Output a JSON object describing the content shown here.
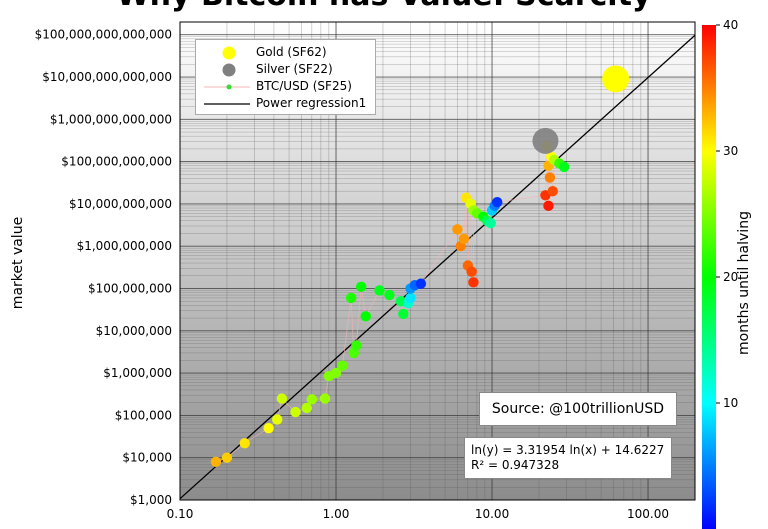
{
  "chart_data": {
    "type": "scatter",
    "title": "Why Bitcoin has Value: Scarcity",
    "ylabel": "market value",
    "colorbar_label": "months until halving",
    "x_scale": "log",
    "y_scale": "log",
    "xlim": [
      0.1,
      200
    ],
    "ylim": [
      1000,
      200000000000000
    ],
    "x_ticks": [
      0.1,
      1,
      10,
      100
    ],
    "x_tick_labels": [
      "0.10",
      "1.00",
      "10.00",
      "100.00"
    ],
    "y_ticks": [
      1000,
      10000,
      100000,
      1000000,
      10000000,
      100000000,
      1000000000,
      10000000000,
      100000000000,
      1000000000000,
      10000000000000,
      100000000000000
    ],
    "y_tick_labels": [
      "$1,000",
      "$10,000",
      "$100,000",
      "$1,000,000",
      "$10,000,000",
      "$100,000,000",
      "$1,000,000,000",
      "$10,000,000,000",
      "$100,000,000,000",
      "$1,000,000,000,000",
      "$10,000,000,000,000",
      "$100,000,000,000,000"
    ],
    "colorbar_range": [
      0,
      40
    ],
    "colorbar_ticks": [
      10,
      20,
      30,
      40
    ],
    "grid": true,
    "legend_position": "top-left",
    "legend": [
      {
        "label": "Gold (SF62)",
        "symbol": "large-yellow-dot"
      },
      {
        "label": "Silver (SF22)",
        "symbol": "large-gray-dot"
      },
      {
        "label": "BTC/USD (SF25)",
        "symbol": "small-green-dot-with-line"
      },
      {
        "label": "Power regression1",
        "symbol": "black-line"
      }
    ],
    "gold": {
      "sf": 62,
      "value": 9000000000000,
      "color": "#ffff00"
    },
    "silver": {
      "sf": 22,
      "value": 310000000000,
      "color": "#808080"
    },
    "regression": {
      "intercept": 14.6227,
      "slope": 3.31954
    },
    "btc_points": [
      {
        "sf": 0.17,
        "value": 8000,
        "months": 33
      },
      {
        "sf": 0.2,
        "value": 10000,
        "months": 32
      },
      {
        "sf": 0.26,
        "value": 22000,
        "months": 31
      },
      {
        "sf": 0.37,
        "value": 50000,
        "months": 30
      },
      {
        "sf": 0.42,
        "value": 80000,
        "months": 29
      },
      {
        "sf": 0.45,
        "value": 250000,
        "months": 28
      },
      {
        "sf": 0.55,
        "value": 120000,
        "months": 28
      },
      {
        "sf": 0.65,
        "value": 150000,
        "months": 27
      },
      {
        "sf": 0.7,
        "value": 240000,
        "months": 26
      },
      {
        "sf": 0.85,
        "value": 250000,
        "months": 26
      },
      {
        "sf": 0.9,
        "value": 850000,
        "months": 25
      },
      {
        "sf": 1.0,
        "value": 1000000,
        "months": 25
      },
      {
        "sf": 1.1,
        "value": 1500000,
        "months": 24
      },
      {
        "sf": 1.3,
        "value": 3000000,
        "months": 23
      },
      {
        "sf": 1.35,
        "value": 4500000,
        "months": 22
      },
      {
        "sf": 1.25,
        "value": 60000000,
        "months": 21
      },
      {
        "sf": 1.45,
        "value": 110000000,
        "months": 20
      },
      {
        "sf": 1.55,
        "value": 22000000,
        "months": 20
      },
      {
        "sf": 1.9,
        "value": 90000000,
        "months": 19
      },
      {
        "sf": 2.2,
        "value": 70000000,
        "months": 19
      },
      {
        "sf": 2.6,
        "value": 50000000,
        "months": 17
      },
      {
        "sf": 2.7,
        "value": 25000000,
        "months": 18
      },
      {
        "sf": 2.9,
        "value": 45000000,
        "months": 12
      },
      {
        "sf": 3.0,
        "value": 60000000,
        "months": 9
      },
      {
        "sf": 3.0,
        "value": 100000000,
        "months": 6
      },
      {
        "sf": 3.2,
        "value": 120000000,
        "months": 4
      },
      {
        "sf": 3.5,
        "value": 130000000,
        "months": 2
      },
      {
        "sf": 6.0,
        "value": 2500000000,
        "months": 34
      },
      {
        "sf": 6.3,
        "value": 1000000000,
        "months": 35
      },
      {
        "sf": 6.6,
        "value": 1500000000,
        "months": 34
      },
      {
        "sf": 7.0,
        "value": 350000000,
        "months": 36
      },
      {
        "sf": 7.4,
        "value": 250000000,
        "months": 37
      },
      {
        "sf": 7.6,
        "value": 140000000,
        "months": 38
      },
      {
        "sf": 6.8,
        "value": 14000000000,
        "months": 31
      },
      {
        "sf": 7.3,
        "value": 10000000000,
        "months": 29
      },
      {
        "sf": 7.6,
        "value": 7000000000,
        "months": 26
      },
      {
        "sf": 8.0,
        "value": 6000000000,
        "months": 24
      },
      {
        "sf": 8.8,
        "value": 5000000000,
        "months": 20
      },
      {
        "sf": 9.3,
        "value": 4000000000,
        "months": 17
      },
      {
        "sf": 9.8,
        "value": 3500000000,
        "months": 14
      },
      {
        "sf": 10.0,
        "value": 7000000000,
        "months": 8
      },
      {
        "sf": 10.4,
        "value": 9000000000,
        "months": 5
      },
      {
        "sf": 10.8,
        "value": 11000000000,
        "months": 2
      },
      {
        "sf": 22.0,
        "value": 16000000000,
        "months": 38
      },
      {
        "sf": 23.0,
        "value": 9000000000,
        "months": 39
      },
      {
        "sf": 24.5,
        "value": 20000000000,
        "months": 37
      },
      {
        "sf": 23.5,
        "value": 42000000000,
        "months": 35
      },
      {
        "sf": 23.0,
        "value": 80000000000,
        "months": 33
      },
      {
        "sf": 22.5,
        "value": 230000000000,
        "months": 31
      },
      {
        "sf": 24.0,
        "value": 130000000000,
        "months": 30
      },
      {
        "sf": 25.0,
        "value": 110000000000,
        "months": 27
      },
      {
        "sf": 27.0,
        "value": 90000000000,
        "months": 22
      },
      {
        "sf": 29.0,
        "value": 75000000000,
        "months": 19
      }
    ],
    "source": "Source: @100trillionUSD",
    "regression_text": "ln(y) = 3.31954 ln(x) + 14.6227",
    "r2_text": "R² = 0.947328"
  }
}
